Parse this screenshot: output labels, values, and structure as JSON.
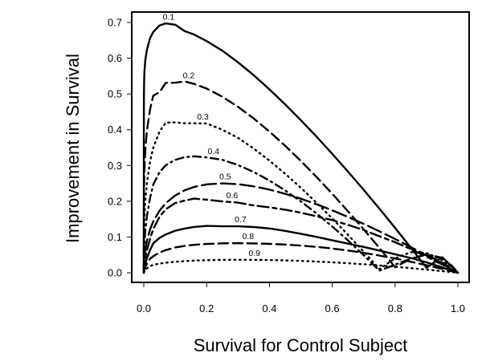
{
  "chart_data": {
    "type": "line",
    "title": "",
    "xlabel": "Survival for Control Subject",
    "ylabel": "Improvement in Survival",
    "xlim": [
      0,
      1
    ],
    "ylim": [
      0,
      0.7
    ],
    "xticks": [
      "0.0",
      "0.2",
      "0.4",
      "0.6",
      "0.8",
      "1.0"
    ],
    "yticks": [
      "0.0",
      "0.1",
      "0.2",
      "0.3",
      "0.4",
      "0.5",
      "0.6",
      "0.7"
    ],
    "grid": false,
    "legend": "none",
    "color": "#000000",
    "x": [
      0,
      0.0001,
      0.0005,
      0.001,
      0.002,
      0.005,
      0.01,
      0.02,
      0.03,
      0.05,
      0.07,
      0.1,
      0.13,
      0.16,
      0.2,
      0.25,
      0.3,
      0.35,
      0.4,
      0.45,
      0.5,
      0.55,
      0.6,
      0.65,
      0.7,
      0.75,
      0.8,
      0.85,
      0.9,
      0.95,
      0.98,
      1.0
    ],
    "series": [
      {
        "label": "0.1",
        "label_x": 0.074,
        "dash": "solid",
        "values": [
          0,
          0.398,
          0.4948,
          0.5309,
          0.5621,
          0.5965,
          0.6239,
          0.6561,
          0.6734,
          0.6916,
          0.6974,
          0.6938,
          0.676,
          0.6663,
          0.6479,
          0.6211,
          0.5885,
          0.5523,
          0.5129,
          0.4709,
          0.4267,
          0.3806,
          0.3326,
          0.283,
          0.2319,
          0.1794,
          0.1255,
          0.0704,
          0.014,
          0.0435,
          0.0177,
          0
        ]
      },
      {
        "label": "0.2",
        "label_x": 0.138,
        "dash": "dashed",
        "values": [
          0,
          0.1585,
          0.2046,
          0.2501,
          0.2891,
          0.3464,
          0.3981,
          0.4571,
          0.4952,
          0.5049,
          0.5311,
          0.5316,
          0.5351,
          0.5283,
          0.5151,
          0.4923,
          0.4641,
          0.4314,
          0.3949,
          0.3552,
          0.3127,
          0.2679,
          0.2208,
          0.172,
          0.1215,
          0.0694,
          0.0158,
          0.0389,
          0.0508,
          0.0288,
          0.0125,
          0
        ]
      },
      {
        "label": "0.3",
        "label_x": 0.183,
        "dash": "dotted",
        "values": [
          0,
          0.0631,
          0.1019,
          0.1259,
          0.1548,
          0.2013,
          0.251,
          0.3109,
          0.3495,
          0.3949,
          0.42,
          0.4205,
          0.4181,
          0.4181,
          0.4175,
          0.4,
          0.3772,
          0.3472,
          0.3137,
          0.277,
          0.2376,
          0.1958,
          0.1519,
          0.1062,
          0.0591,
          0.0102,
          0.0403,
          0.0575,
          0.0554,
          0.0362,
          0.0161,
          0
        ]
      },
      {
        "label": "0.4",
        "label_x": 0.217,
        "dash": "dashdot",
        "values": [
          0,
          0.0251,
          0.0475,
          0.0631,
          0.0826,
          0.1191,
          0.1585,
          0.2093,
          0.2466,
          0.2812,
          0.3009,
          0.3156,
          0.3232,
          0.3256,
          0.3227,
          0.3158,
          0.3013,
          0.2817,
          0.2578,
          0.2303,
          0.1995,
          0.1657,
          0.1293,
          0.0904,
          0.0492,
          0.0059,
          0.0227,
          0.0392,
          0.0516,
          0.0418,
          0.0203,
          0
        ]
      },
      {
        "label": "0.5",
        "label_x": 0.254,
        "dash": "longdash",
        "values": [
          0,
          0.01,
          0.0218,
          0.0306,
          0.0427,
          0.0657,
          0.09,
          0.1214,
          0.1432,
          0.1736,
          0.1946,
          0.2162,
          0.2306,
          0.24,
          0.2472,
          0.25,
          0.2477,
          0.2416,
          0.2325,
          0.2208,
          0.2071,
          0.1916,
          0.1746,
          0.1562,
          0.1367,
          0.116,
          0.0944,
          0.0719,
          0.0487,
          0.0247,
          0.0099,
          0
        ]
      },
      {
        "label": "0.6",
        "label_x": 0.276,
        "dash": "twodash",
        "values": [
          0,
          0.004,
          0.0103,
          0.0158,
          0.024,
          0.0412,
          0.0631,
          0.0955,
          0.1218,
          0.1561,
          0.1777,
          0.195,
          0.2018,
          0.2073,
          0.2044,
          0.1995,
          0.1962,
          0.1882,
          0.183,
          0.1764,
          0.168,
          0.1579,
          0.1472,
          0.134,
          0.1195,
          0.102,
          0.0856,
          0.0662,
          0.045,
          0.0232,
          0.0094,
          0
        ]
      },
      {
        "label": "0.7",
        "label_x": 0.303,
        "dash": "solid",
        "values": [
          0,
          0.0016,
          0.0048,
          0.008,
          0.0135,
          0.0262,
          0.0407,
          0.064,
          0.082,
          0.0975,
          0.1072,
          0.1175,
          0.1236,
          0.1281,
          0.131,
          0.1299,
          0.13,
          0.1279,
          0.1237,
          0.1172,
          0.1089,
          0.1002,
          0.0907,
          0.0814,
          0.0721,
          0.0622,
          0.0518,
          0.0412,
          0.0292,
          0.015,
          0.006,
          0
        ]
      },
      {
        "label": "0.8",
        "label_x": 0.327,
        "dash": "dashed",
        "values": [
          0,
          0.0006,
          0.0023,
          0.004,
          0.0077,
          0.0166,
          0.0251,
          0.0392,
          0.0461,
          0.0566,
          0.0633,
          0.0709,
          0.0751,
          0.0781,
          0.0806,
          0.0822,
          0.0829,
          0.0821,
          0.0808,
          0.0788,
          0.076,
          0.0724,
          0.0678,
          0.0622,
          0.0557,
          0.0482,
          0.0399,
          0.0308,
          0.0212,
          0.0108,
          0.0043,
          0
        ]
      },
      {
        "label": "0.9",
        "label_x": 0.347,
        "dash": "dotted",
        "values": [
          0,
          0.0003,
          0.0011,
          0.002,
          0.0036,
          0.0075,
          0.0122,
          0.0187,
          0.0219,
          0.0257,
          0.0281,
          0.0307,
          0.0326,
          0.0339,
          0.0352,
          0.0361,
          0.0364,
          0.0362,
          0.0356,
          0.0346,
          0.0332,
          0.0314,
          0.0292,
          0.0267,
          0.0238,
          0.0205,
          0.0169,
          0.013,
          0.0089,
          0.0045,
          0.0018,
          0
        ]
      }
    ]
  }
}
